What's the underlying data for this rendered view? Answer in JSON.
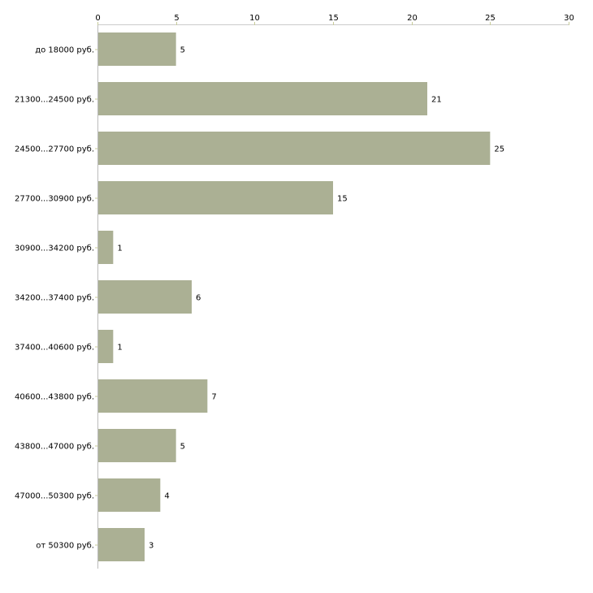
{
  "chart_data": {
    "type": "bar",
    "orientation": "horizontal",
    "title": "",
    "xlabel": "",
    "ylabel": "",
    "xlim": [
      0,
      30
    ],
    "x_ticks": [
      "0",
      "5",
      "10",
      "15",
      "20",
      "25",
      "30"
    ],
    "tick_values": [
      0,
      5,
      10,
      15,
      20,
      25,
      30
    ],
    "categories": [
      "до 18000 руб.",
      "21300...24500 руб.",
      "24500...27700 руб.",
      "27700...30900 руб.",
      "30900...34200 руб.",
      "34200...37400 руб.",
      "37400...40600 руб.",
      "40600...43800 руб.",
      "43800...47000 руб.",
      "47000...50300 руб.",
      "от 50300 руб."
    ],
    "values": [
      5,
      21,
      25,
      15,
      1,
      6,
      1,
      7,
      5,
      4,
      3
    ],
    "bar_color": "#abb094",
    "grid": false
  }
}
